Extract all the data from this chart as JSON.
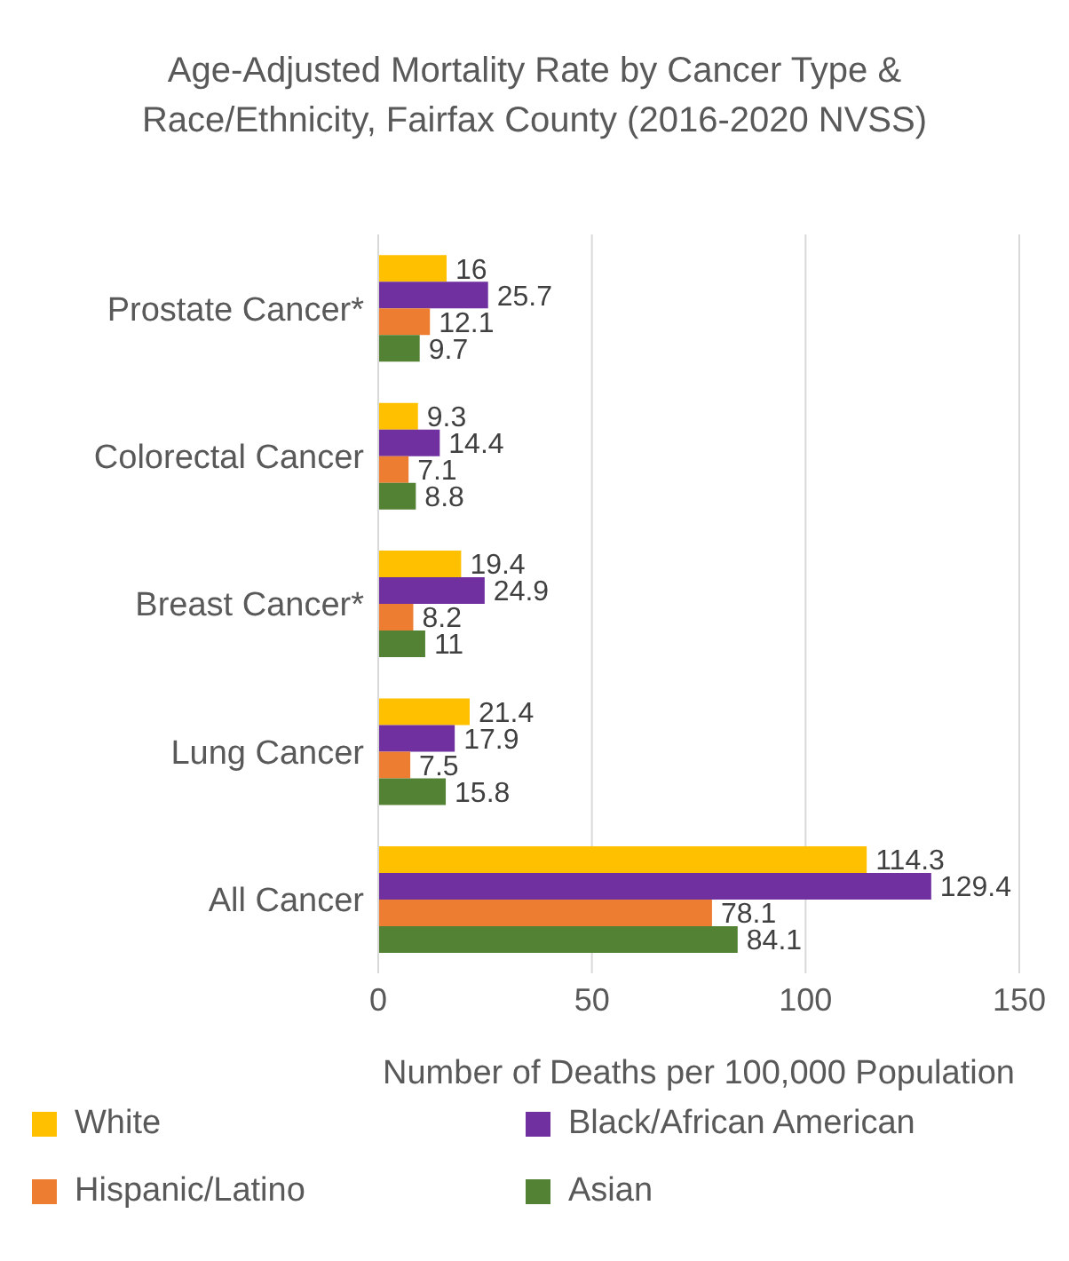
{
  "chart_data": {
    "type": "bar",
    "orientation": "horizontal",
    "title": "Age-Adjusted Mortality Rate by Cancer Type & Race/Ethnicity, Fairfax County (2016-2020 NVSS)",
    "xlabel": "Number of Deaths per 100,000 Population",
    "categories": [
      "Prostate Cancer*",
      "Colorectal Cancer",
      "Breast Cancer*",
      "Lung Cancer",
      "All Cancer"
    ],
    "series": [
      {
        "name": "White",
        "color": "#ffc000",
        "values": [
          16,
          9.3,
          19.4,
          21.4,
          114.3
        ]
      },
      {
        "name": "Black/African American",
        "color": "#7030a0",
        "values": [
          25.7,
          14.4,
          24.9,
          17.9,
          129.4
        ]
      },
      {
        "name": "Hispanic/Latino",
        "color": "#ed7d31",
        "values": [
          12.1,
          7.1,
          8.2,
          7.5,
          78.1
        ]
      },
      {
        "name": "Asian",
        "color": "#548235",
        "values": [
          9.7,
          8.8,
          11,
          15.8,
          84.1
        ]
      }
    ],
    "xlim": [
      0,
      150
    ],
    "xticks": [
      0,
      50,
      100,
      150
    ],
    "grid": "x",
    "legend": "bottom",
    "data_labels": true
  }
}
